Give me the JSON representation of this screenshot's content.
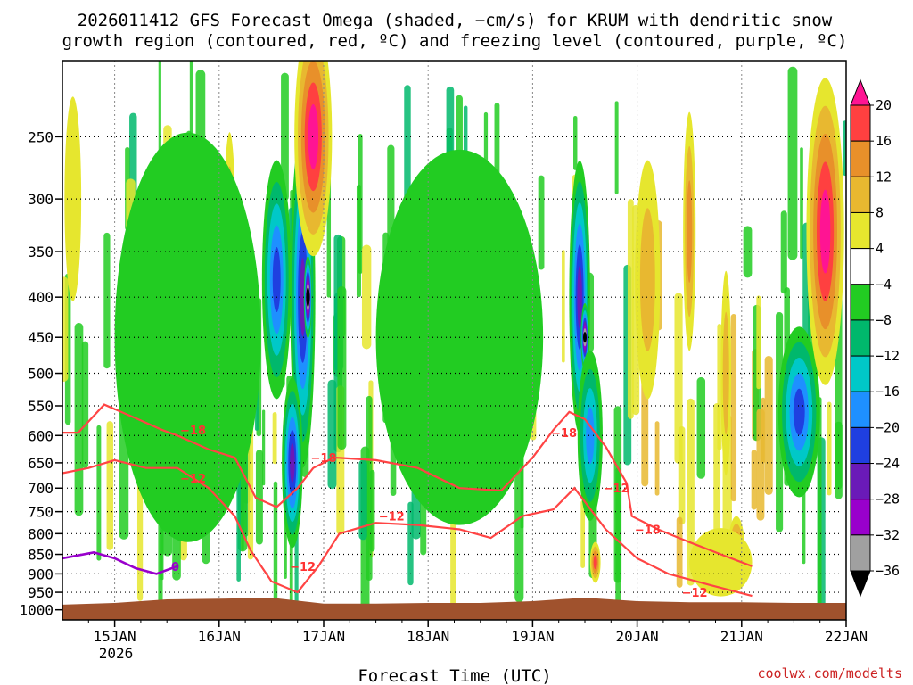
{
  "chart_data": {
    "type": "heatmap",
    "title_line1": "2026011412 GFS Forecast Omega (shaded, −cm/s) for KRUM with dendritic snow",
    "title_line2": "growth region (contoured, red, ºC) and freezing level (contoured, purple, ºC)",
    "xlabel": "Forecast Time (UTC)",
    "credit": "coolwx.com/modelts",
    "x_ticks": [
      "15JAN",
      "16JAN",
      "17JAN",
      "18JAN",
      "19JAN",
      "20JAN",
      "21JAN",
      "22JAN"
    ],
    "x_year": "2026",
    "x_range": [
      14.5,
      22.0
    ],
    "y_ticks": [
      250,
      300,
      350,
      400,
      450,
      500,
      550,
      600,
      650,
      700,
      750,
      800,
      850,
      900,
      950,
      1000
    ],
    "y_range": [
      200,
      1030
    ],
    "y_scale": "log-pressure",
    "grid": true,
    "colorbar": {
      "levels": [
        -36,
        -32,
        -28,
        -24,
        -20,
        -16,
        -12,
        -8,
        -4,
        4,
        8,
        12,
        16,
        20
      ],
      "labels": [
        "20",
        "16",
        "12",
        "8",
        "4",
        "−4",
        "−8",
        "−12",
        "−16",
        "−20",
        "−24",
        "−28",
        "−32",
        "−36"
      ],
      "colors": {
        "lt_m36": "#000000",
        "m36_m32": "#a0a0a0",
        "m32_m28": "#9900cc",
        "m28_m24": "#6a1ab8",
        "m24_m20": "#1f3fe0",
        "m20_m16": "#1e90ff",
        "m16_m12": "#00c8c8",
        "m12_m8": "#00b86c",
        "m8_m4": "#22cc22",
        "m4_p4": "#ffffff",
        "p4_p8": "#e6e62e",
        "p8_p12": "#e8b830",
        "p12_p16": "#e8902a",
        "p16_p20": "#ff4040",
        "gt_p20": "#ff1493"
      }
    },
    "omega_cells": [
      {
        "t": 16.55,
        "p": 380,
        "dt": 0.14,
        "lp": 0.35,
        "v": -22
      },
      {
        "t": 16.8,
        "p": 400,
        "dt": 0.12,
        "lp": 0.5,
        "v": -28
      },
      {
        "t": 16.85,
        "p": 400,
        "dt": 0.04,
        "lp": 0.12,
        "v": -38
      },
      {
        "t": 16.7,
        "p": 650,
        "dt": 0.1,
        "lp": 0.25,
        "v": -26
      },
      {
        "t": 16.9,
        "p": 250,
        "dt": 0.18,
        "lp": 0.35,
        "v": 22
      },
      {
        "t": 16.1,
        "p": 350,
        "dt": 0.06,
        "lp": 0.35,
        "v": 14
      },
      {
        "t": 19.45,
        "p": 400,
        "dt": 0.1,
        "lp": 0.4,
        "v": -28
      },
      {
        "t": 19.5,
        "p": 450,
        "dt": 0.04,
        "lp": 0.1,
        "v": -36
      },
      {
        "t": 19.55,
        "p": 600,
        "dt": 0.12,
        "lp": 0.25,
        "v": -18
      },
      {
        "t": 21.55,
        "p": 560,
        "dt": 0.2,
        "lp": 0.25,
        "v": -22
      },
      {
        "t": 21.8,
        "p": 330,
        "dt": 0.18,
        "lp": 0.45,
        "v": 22
      },
      {
        "t": 20.1,
        "p": 380,
        "dt": 0.12,
        "lp": 0.35,
        "v": 10
      },
      {
        "t": 20.5,
        "p": 330,
        "dt": 0.06,
        "lp": 0.35,
        "v": 14
      },
      {
        "t": 20.85,
        "p": 500,
        "dt": 0.05,
        "lp": 0.3,
        "v": 10
      },
      {
        "t": 19.6,
        "p": 870,
        "dt": 0.05,
        "lp": 0.06,
        "v": 18
      },
      {
        "t": 20.95,
        "p": 840,
        "dt": 0.08,
        "lp": 0.1,
        "v": 18
      },
      {
        "t": 20.8,
        "p": 870,
        "dt": 0.3,
        "lp": 0.1,
        "v": 8
      },
      {
        "t": 15.7,
        "p": 450,
        "dt": 0.7,
        "lp": 0.6,
        "v": -6
      },
      {
        "t": 18.3,
        "p": 450,
        "dt": 0.8,
        "lp": 0.55,
        "v": -6
      },
      {
        "t": 14.6,
        "p": 300,
        "dt": 0.08,
        "lp": 0.3,
        "v": 8
      }
    ],
    "dgz_upper_-18": [
      [
        14.5,
        595
      ],
      [
        14.65,
        595
      ],
      [
        14.9,
        548
      ],
      [
        15.2,
        570
      ],
      [
        15.45,
        590
      ],
      [
        15.6,
        600
      ],
      [
        15.9,
        625
      ],
      [
        16.15,
        640
      ],
      [
        16.35,
        720
      ],
      [
        16.55,
        740
      ],
      [
        16.75,
        700
      ],
      [
        16.9,
        660
      ],
      [
        17.1,
        640
      ],
      [
        17.5,
        645
      ],
      [
        17.9,
        660
      ],
      [
        18.3,
        700
      ],
      [
        18.7,
        705
      ],
      [
        19.0,
        640
      ],
      [
        19.2,
        590
      ],
      [
        19.35,
        560
      ],
      [
        19.5,
        572
      ],
      [
        19.7,
        620
      ],
      [
        19.9,
        690
      ],
      [
        19.95,
        760
      ],
      [
        20.2,
        790
      ],
      [
        20.5,
        820
      ],
      [
        20.8,
        850
      ],
      [
        21.1,
        880
      ]
    ],
    "dgz_lower_-12": [
      [
        14.5,
        670
      ],
      [
        14.75,
        660
      ],
      [
        15.0,
        645
      ],
      [
        15.3,
        660
      ],
      [
        15.6,
        660
      ],
      [
        15.9,
        700
      ],
      [
        16.15,
        760
      ],
      [
        16.3,
        840
      ],
      [
        16.5,
        920
      ],
      [
        16.75,
        950
      ],
      [
        16.95,
        880
      ],
      [
        17.15,
        800
      ],
      [
        17.5,
        775
      ],
      [
        17.9,
        780
      ],
      [
        18.3,
        790
      ],
      [
        18.6,
        810
      ],
      [
        18.9,
        760
      ],
      [
        19.2,
        745
      ],
      [
        19.4,
        700
      ],
      [
        19.7,
        790
      ],
      [
        20.0,
        860
      ],
      [
        20.3,
        900
      ],
      [
        20.7,
        930
      ],
      [
        21.1,
        960
      ]
    ],
    "freezing_level_0": [
      [
        14.5,
        860
      ],
      [
        14.8,
        845
      ],
      [
        15.0,
        860
      ],
      [
        15.2,
        885
      ],
      [
        15.4,
        900
      ],
      [
        15.6,
        880
      ]
    ],
    "contour_labels": [
      {
        "text": "−18",
        "t": 15.75,
        "p": 590,
        "kind": "red"
      },
      {
        "text": "−12",
        "t": 15.75,
        "p": 680,
        "kind": "red"
      },
      {
        "text": "−18",
        "t": 17.0,
        "p": 640,
        "kind": "red"
      },
      {
        "text": "−12",
        "t": 17.65,
        "p": 760,
        "kind": "red"
      },
      {
        "text": "−12",
        "t": 16.8,
        "p": 880,
        "kind": "red"
      },
      {
        "text": "−18",
        "t": 19.3,
        "p": 595,
        "kind": "red"
      },
      {
        "text": "−12",
        "t": 19.8,
        "p": 700,
        "kind": "red"
      },
      {
        "text": "−18",
        "t": 20.1,
        "p": 790,
        "kind": "red"
      },
      {
        "text": "−12",
        "t": 20.55,
        "p": 950,
        "kind": "red"
      },
      {
        "text": "0",
        "t": 15.58,
        "p": 880,
        "kind": "purple"
      }
    ],
    "terrain_surface": [
      [
        14.5,
        985
      ],
      [
        15.0,
        980
      ],
      [
        15.5,
        970
      ],
      [
        16.0,
        968
      ],
      [
        16.5,
        965
      ],
      [
        17.0,
        982
      ],
      [
        17.5,
        982
      ],
      [
        18.0,
        980
      ],
      [
        18.5,
        980
      ],
      [
        19.0,
        975
      ],
      [
        19.5,
        965
      ],
      [
        20.0,
        975
      ],
      [
        20.5,
        978
      ],
      [
        21.0,
        978
      ],
      [
        21.5,
        980
      ],
      [
        22.0,
        980
      ]
    ]
  }
}
